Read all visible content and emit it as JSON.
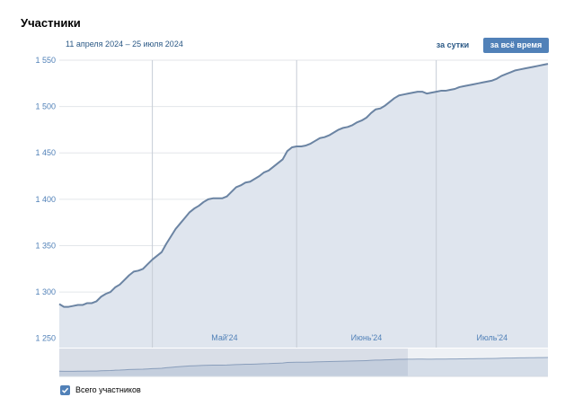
{
  "header": {
    "title": "Участники",
    "date_range": "11 апреля 2024 – 25 июля 2024"
  },
  "buttons": {
    "per_day": "за сутки",
    "all_time": "за всё время"
  },
  "legend": {
    "label": "Всего участников",
    "checked": true
  },
  "colors": {
    "line": "#6b84a3",
    "area": "#dfe5ee",
    "axis_text": "#5181b8",
    "button_active": "#5181b8",
    "link": "#2a5885"
  },
  "chart_data": {
    "type": "area",
    "title": "",
    "xlabel": "",
    "ylabel": "",
    "ylim": [
      1240,
      1550
    ],
    "yticks": [
      1250,
      1300,
      1350,
      1400,
      1450,
      1500,
      1550
    ],
    "ytick_labels": [
      "1 250",
      "1 300",
      "1 350",
      "1 400",
      "1 450",
      "1 500",
      "1 550"
    ],
    "xlim": [
      "2024-04-11",
      "2024-07-25"
    ],
    "month_ticks": [
      {
        "label": "Май'24",
        "start": "2024-05-01",
        "end": "2024-06-01"
      },
      {
        "label": "Июнь'24",
        "start": "2024-06-01",
        "end": "2024-07-01"
      },
      {
        "label": "Июль'24",
        "start": "2024-07-01",
        "end": "2024-07-25"
      }
    ],
    "grid": true,
    "legend_position": "bottom-left",
    "series": [
      {
        "name": "Всего участников",
        "x": [
          "2024-04-11",
          "2024-04-12",
          "2024-04-13",
          "2024-04-14",
          "2024-04-15",
          "2024-04-16",
          "2024-04-17",
          "2024-04-18",
          "2024-04-19",
          "2024-04-20",
          "2024-04-21",
          "2024-04-22",
          "2024-04-23",
          "2024-04-24",
          "2024-04-25",
          "2024-04-26",
          "2024-04-27",
          "2024-04-28",
          "2024-04-29",
          "2024-04-30",
          "2024-05-01",
          "2024-05-02",
          "2024-05-03",
          "2024-05-04",
          "2024-05-05",
          "2024-05-06",
          "2024-05-07",
          "2024-05-08",
          "2024-05-09",
          "2024-05-10",
          "2024-05-11",
          "2024-05-12",
          "2024-05-13",
          "2024-05-14",
          "2024-05-15",
          "2024-05-16",
          "2024-05-17",
          "2024-05-18",
          "2024-05-19",
          "2024-05-20",
          "2024-05-21",
          "2024-05-22",
          "2024-05-23",
          "2024-05-24",
          "2024-05-25",
          "2024-05-26",
          "2024-05-27",
          "2024-05-28",
          "2024-05-29",
          "2024-05-30",
          "2024-05-31",
          "2024-06-01",
          "2024-06-02",
          "2024-06-03",
          "2024-06-04",
          "2024-06-05",
          "2024-06-06",
          "2024-06-07",
          "2024-06-08",
          "2024-06-09",
          "2024-06-10",
          "2024-06-11",
          "2024-06-12",
          "2024-06-13",
          "2024-06-14",
          "2024-06-15",
          "2024-06-16",
          "2024-06-17",
          "2024-06-18",
          "2024-06-19",
          "2024-06-20",
          "2024-06-21",
          "2024-06-22",
          "2024-06-23",
          "2024-06-24",
          "2024-06-25",
          "2024-06-26",
          "2024-06-27",
          "2024-06-28",
          "2024-06-29",
          "2024-06-30",
          "2024-07-01",
          "2024-07-02",
          "2024-07-03",
          "2024-07-04",
          "2024-07-05",
          "2024-07-06",
          "2024-07-07",
          "2024-07-08",
          "2024-07-09",
          "2024-07-10",
          "2024-07-11",
          "2024-07-12",
          "2024-07-13",
          "2024-07-14",
          "2024-07-15",
          "2024-07-16",
          "2024-07-17",
          "2024-07-18",
          "2024-07-19",
          "2024-07-20",
          "2024-07-21",
          "2024-07-22",
          "2024-07-23",
          "2024-07-24",
          "2024-07-25"
        ],
        "values": [
          1287,
          1284,
          1284,
          1285,
          1286,
          1286,
          1288,
          1288,
          1290,
          1295,
          1298,
          1300,
          1305,
          1308,
          1313,
          1318,
          1322,
          1323,
          1325,
          1330,
          1335,
          1339,
          1343,
          1352,
          1360,
          1368,
          1374,
          1380,
          1386,
          1390,
          1393,
          1397,
          1400,
          1401,
          1401,
          1401,
          1403,
          1408,
          1413,
          1415,
          1418,
          1419,
          1422,
          1425,
          1429,
          1431,
          1435,
          1439,
          1443,
          1452,
          1456,
          1457,
          1457,
          1458,
          1460,
          1463,
          1466,
          1467,
          1469,
          1472,
          1475,
          1477,
          1478,
          1480,
          1483,
          1485,
          1488,
          1493,
          1497,
          1498,
          1501,
          1505,
          1509,
          1512,
          1513,
          1514,
          1515,
          1516,
          1516,
          1514,
          1515,
          1516,
          1517,
          1517,
          1518,
          1519,
          1521,
          1522,
          1523,
          1524,
          1525,
          1526,
          1527,
          1528,
          1530,
          1533,
          1535,
          1537,
          1539,
          1540,
          1541,
          1542,
          1543,
          1544,
          1545,
          1546
        ]
      }
    ]
  }
}
